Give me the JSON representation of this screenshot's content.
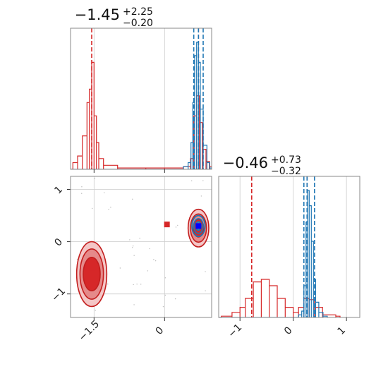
{
  "colors": {
    "red": "#d62728",
    "blue": "#1f77b4",
    "grid": "#cccccc",
    "frame": "#888888"
  },
  "chart_data": [
    {
      "type": "histogram",
      "panel": "top-left",
      "title": {
        "value": "−1.45",
        "plus": "+2.25",
        "minus": "−0.20"
      },
      "xlim": [
        -2.0,
        1.0
      ],
      "x_ticks": [
        -1.5,
        0.0
      ],
      "grid": true,
      "series": [
        {
          "color": "red",
          "bins": [
            [
              -1.95,
              0.05
            ],
            [
              -1.85,
              0.1
            ],
            [
              -1.75,
              0.25
            ],
            [
              -1.65,
              0.5
            ],
            [
              -1.6,
              0.6
            ],
            [
              -1.55,
              0.8
            ],
            [
              -1.5,
              0.4
            ],
            [
              -1.45,
              0.2
            ],
            [
              -1.4,
              0.08
            ],
            [
              -1.3,
              0.03
            ],
            [
              -1.0,
              0.01
            ],
            [
              -0.4,
              0.01
            ],
            [
              0.0,
              0.01
            ],
            [
              0.4,
              0.02
            ],
            [
              0.55,
              0.08
            ],
            [
              0.62,
              0.4
            ],
            [
              0.68,
              0.55
            ],
            [
              0.74,
              0.35
            ],
            [
              0.8,
              0.15
            ],
            [
              0.88,
              0.06
            ],
            [
              0.95,
              0.02
            ]
          ],
          "lines": [
            -1.55,
            0.72
          ]
        },
        {
          "color": "blue",
          "bins": [
            [
              0.4,
              0.02
            ],
            [
              0.5,
              0.05
            ],
            [
              0.56,
              0.2
            ],
            [
              0.6,
              0.5
            ],
            [
              0.64,
              0.85
            ],
            [
              0.68,
              0.95
            ],
            [
              0.72,
              0.8
            ],
            [
              0.76,
              0.45
            ],
            [
              0.82,
              0.18
            ],
            [
              0.9,
              0.05
            ],
            [
              0.96,
              0.01
            ]
          ],
          "lines": [
            0.62,
            0.72,
            0.82
          ]
        }
      ]
    },
    {
      "type": "histogram",
      "panel": "bottom-right",
      "title": {
        "value": "−0.46",
        "plus": "+0.73",
        "minus": "−0.32"
      },
      "xlim": [
        -1.4,
        1.25
      ],
      "x_ticks": [
        -1,
        0,
        1
      ],
      "grid": true,
      "series": [
        {
          "color": "red",
          "bins": [
            [
              -1.35,
              0.01
            ],
            [
              -1.15,
              0.04
            ],
            [
              -1.0,
              0.08
            ],
            [
              -0.9,
              0.15
            ],
            [
              -0.75,
              0.28
            ],
            [
              -0.6,
              0.3
            ],
            [
              -0.45,
              0.25
            ],
            [
              -0.3,
              0.15
            ],
            [
              -0.15,
              0.08
            ],
            [
              0.0,
              0.04
            ],
            [
              0.1,
              0.08
            ],
            [
              0.2,
              0.15
            ],
            [
              0.3,
              0.14
            ],
            [
              0.4,
              0.08
            ],
            [
              0.55,
              0.02
            ],
            [
              0.8,
              0.01
            ]
          ],
          "lines": [
            -0.78,
            0.26
          ]
        },
        {
          "color": "blue",
          "bins": [
            [
              0.1,
              0.02
            ],
            [
              0.16,
              0.05
            ],
            [
              0.2,
              0.25
            ],
            [
              0.24,
              0.75
            ],
            [
              0.27,
              1.0
            ],
            [
              0.3,
              0.88
            ],
            [
              0.34,
              0.6
            ],
            [
              0.38,
              0.3
            ],
            [
              0.42,
              0.12
            ],
            [
              0.48,
              0.04
            ],
            [
              0.56,
              0.01
            ]
          ],
          "lines": [
            0.2,
            0.26,
            0.4
          ]
        }
      ]
    },
    {
      "type": "contour",
      "panel": "bottom-left",
      "xlim": [
        -2.0,
        1.0
      ],
      "ylim": [
        -1.45,
        1.25
      ],
      "x_ticks": [
        -1.5,
        0.0
      ],
      "y_ticks": [
        -1,
        0,
        1
      ],
      "grid": true,
      "red_clusters": [
        {
          "cx": -1.55,
          "cy": -0.62,
          "rx": [
            0.32,
            0.25,
            0.18
          ],
          "ry": [
            0.62,
            0.48,
            0.32
          ]
        },
        {
          "cx": 0.72,
          "cy": 0.26,
          "rx": [
            0.22,
            0.17,
            0.11
          ],
          "ry": [
            0.36,
            0.27,
            0.17
          ]
        }
      ],
      "blue_cluster": {
        "cx": 0.72,
        "cy": 0.3,
        "rx": [
          0.14,
          0.1,
          0.06
        ],
        "ry": [
          0.2,
          0.14,
          0.08
        ]
      },
      "red_markers": [
        {
          "x": -1.55,
          "y": -0.6
        },
        {
          "x": 0.05,
          "y": 0.33
        },
        {
          "x": 0.72,
          "y": 0.3
        }
      ],
      "blue_marker": {
        "x": 0.72,
        "y": 0.3
      }
    }
  ]
}
